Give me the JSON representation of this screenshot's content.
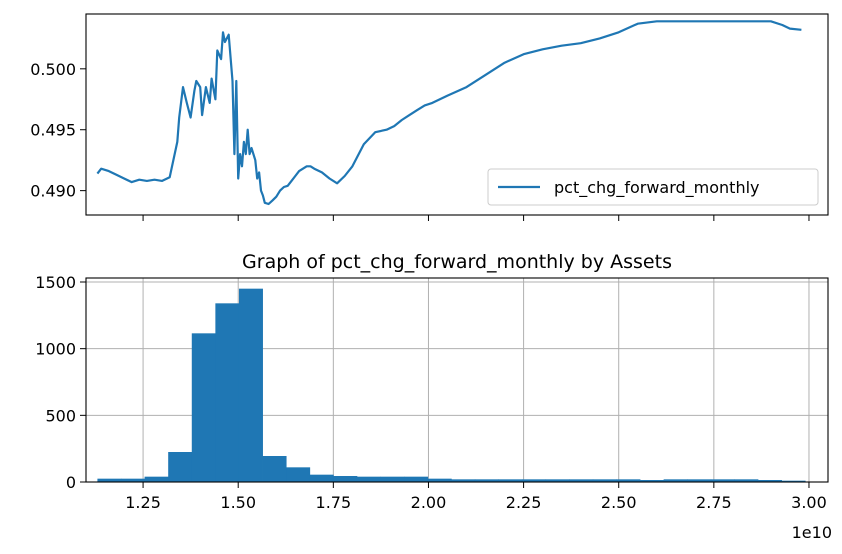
{
  "colors": {
    "series": "#1f77b4",
    "grid": "#b0b0b0",
    "axis": "#000000"
  },
  "chart_data": [
    {
      "type": "line",
      "title": "",
      "xlabel": "",
      "ylabel": "",
      "xlim": [
        11000000000,
        30500000000
      ],
      "ylim": [
        0.488,
        0.5045
      ],
      "x_ticks_labeled": false,
      "y_ticks": [
        0.49,
        0.495,
        0.5
      ],
      "y_tick_labels": [
        "0.490",
        "0.495",
        "0.500"
      ],
      "grid": false,
      "legend": {
        "position": "lower-right",
        "entries": [
          "pct_chg_forward_monthly"
        ]
      },
      "series": [
        {
          "name": "pct_chg_forward_monthly",
          "x": [
            11300000000,
            11400000000,
            11600000000,
            11800000000,
            12000000000,
            12200000000,
            12400000000,
            12600000000,
            12800000000,
            13000000000,
            13200000000,
            13400000000,
            13450000000,
            13550000000,
            13650000000,
            13750000000,
            13850000000,
            13900000000,
            14000000000,
            14050000000,
            14150000000,
            14250000000,
            14300000000,
            14400000000,
            14450000000,
            14550000000,
            14600000000,
            14650000000,
            14750000000,
            14850000000,
            14900000000,
            14950000000,
            15000000000,
            15050000000,
            15100000000,
            15150000000,
            15200000000,
            15250000000,
            15300000000,
            15350000000,
            15400000000,
            15450000000,
            15500000000,
            15550000000,
            15600000000,
            15650000000,
            15700000000,
            15800000000,
            15900000000,
            16000000000,
            16100000000,
            16200000000,
            16300000000,
            16400000000,
            16500000000,
            16600000000,
            16700000000,
            16800000000,
            16900000000,
            17000000000,
            17200000000,
            17400000000,
            17600000000,
            17800000000,
            18000000000,
            18300000000,
            18600000000,
            18900000000,
            19100000000,
            19300000000,
            19500000000,
            19700000000,
            19900000000,
            20100000000,
            20500000000,
            21000000000,
            21500000000,
            22000000000,
            22500000000,
            23000000000,
            23500000000,
            24000000000,
            24500000000,
            25000000000,
            25500000000,
            26000000000,
            26500000000,
            27000000000,
            27500000000,
            28000000000,
            28500000000,
            29000000000,
            29300000000,
            29500000000,
            29800000000
          ],
          "values": [
            0.4914,
            0.4918,
            0.4916,
            0.4913,
            0.491,
            0.4907,
            0.4909,
            0.4908,
            0.4909,
            0.4908,
            0.4911,
            0.494,
            0.496,
            0.4985,
            0.4972,
            0.496,
            0.4982,
            0.499,
            0.4985,
            0.4962,
            0.4985,
            0.4972,
            0.4992,
            0.4975,
            0.5015,
            0.5008,
            0.503,
            0.5022,
            0.5028,
            0.499,
            0.493,
            0.499,
            0.491,
            0.493,
            0.492,
            0.494,
            0.493,
            0.495,
            0.493,
            0.4935,
            0.493,
            0.4925,
            0.491,
            0.4915,
            0.49,
            0.4896,
            0.489,
            0.4889,
            0.4892,
            0.4895,
            0.49,
            0.4903,
            0.4904,
            0.4908,
            0.4912,
            0.4916,
            0.4918,
            0.492,
            0.492,
            0.4918,
            0.4915,
            0.491,
            0.4906,
            0.4912,
            0.492,
            0.4938,
            0.4948,
            0.495,
            0.4953,
            0.4958,
            0.4962,
            0.4966,
            0.497,
            0.4972,
            0.4978,
            0.4985,
            0.4995,
            0.5005,
            0.5012,
            0.5016,
            0.5019,
            0.5021,
            0.5025,
            0.503,
            0.5037,
            0.5039,
            0.5039,
            0.5039,
            0.5039,
            0.5039,
            0.5039,
            0.5039,
            0.5036,
            0.5033,
            0.5032
          ]
        }
      ]
    },
    {
      "type": "bar",
      "title": "Graph of pct_chg_forward_monthly by Assets",
      "xlabel": "",
      "ylabel": "",
      "xlim": [
        11000000000,
        30500000000
      ],
      "ylim": [
        0,
        1530
      ],
      "x_ticks": [
        12500000000,
        15000000000,
        17500000000,
        20000000000,
        22500000000,
        25000000000,
        27500000000,
        30000000000
      ],
      "x_tick_labels": [
        "1.25",
        "1.50",
        "1.75",
        "2.00",
        "2.25",
        "2.50",
        "2.75",
        "3.00"
      ],
      "x_offset_label": "1e10",
      "y_ticks": [
        0,
        500,
        1000,
        1500
      ],
      "y_tick_labels": [
        "0",
        "500",
        "1000",
        "1500"
      ],
      "grid": true,
      "bin_edges": [
        11300000000,
        11920000000,
        12540000000,
        13160000000,
        13780000000,
        14400000000,
        15020000000,
        15640000000,
        16260000000,
        16880000000,
        17500000000,
        18120000000,
        18740000000,
        19360000000,
        19980000000,
        20600000000,
        21220000000,
        21840000000,
        22460000000,
        23080000000,
        23700000000,
        24320000000,
        24940000000,
        25560000000,
        26180000000,
        26800000000,
        27420000000,
        28040000000,
        28660000000,
        29280000000,
        29900000000
      ],
      "values": [
        25,
        25,
        40,
        225,
        1115,
        1340,
        1450,
        195,
        110,
        55,
        45,
        40,
        40,
        40,
        25,
        20,
        20,
        20,
        20,
        20,
        20,
        20,
        20,
        15,
        20,
        20,
        20,
        20,
        15,
        10
      ]
    }
  ]
}
